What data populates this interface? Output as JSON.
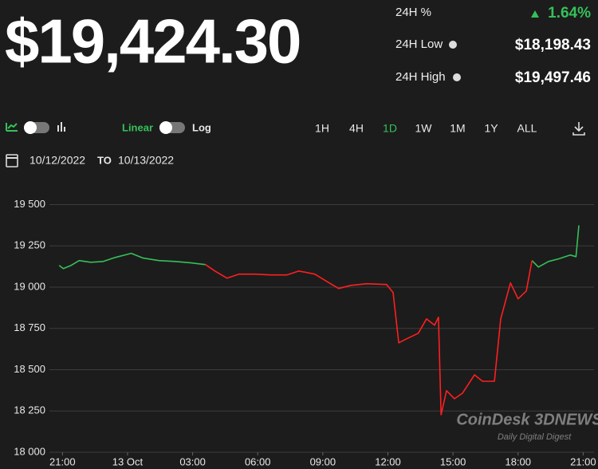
{
  "header": {
    "price": "$19,424.30",
    "stats": [
      {
        "label": "24H %",
        "value": "1.64%"
      },
      {
        "label": "24H Low",
        "value": "$18,198.43"
      },
      {
        "label": "24H High",
        "value": "$19,497.46"
      }
    ]
  },
  "controls": {
    "scale_linear": "Linear",
    "scale_log": "Log",
    "ranges": [
      "1H",
      "4H",
      "1D",
      "1W",
      "1M",
      "1Y",
      "ALL"
    ],
    "active_range": 2,
    "date_from": "10/12/2022",
    "date_to_label": "TO",
    "date_to": "10/13/2022"
  },
  "watermark": {
    "logo": "CoinDesk 3DNEWS",
    "tagline": "Daily Digital Digest"
  },
  "chart_data": {
    "type": "line",
    "x": [
      -0.15,
      0.04,
      0.4,
      0.77,
      1.3,
      1.88,
      2.43,
      3.17,
      3.72,
      4.45,
      5.19,
      5.93,
      6.59,
      7.03,
      7.58,
      8.13,
      8.87,
      9.6,
      10.34,
      10.9,
      11.63,
      12.18,
      12.73,
      13.29,
      14.02,
      14.94,
      15.24,
      15.5,
      15.86,
      16.4,
      16.78,
      17.15,
      17.33,
      17.45,
      17.7,
      18.07,
      18.44,
      18.99,
      19.36,
      19.91,
      20.2,
      20.65,
      21.0,
      21.38,
      21.64,
      21.94,
      22.4,
      22.86,
      23.4,
      23.67,
      23.8
    ],
    "series": [
      {
        "color": "#35c05a",
        "values": [
          19132,
          19113,
          19132,
          19161,
          19151,
          19156,
          19180,
          19205,
          19176,
          19161,
          19156,
          19147,
          19137,
          null,
          null,
          null,
          null,
          null,
          null,
          null,
          null,
          null,
          null,
          null,
          null,
          null,
          null,
          null,
          null,
          null,
          null,
          null,
          null,
          null,
          null,
          null,
          null,
          null,
          null,
          null,
          null,
          null,
          null,
          null,
          19161,
          19122,
          19156,
          19171,
          19195,
          19185,
          19374
        ]
      },
      {
        "color": "#ff1f1f",
        "values": [
          null,
          null,
          null,
          null,
          null,
          null,
          null,
          null,
          null,
          null,
          null,
          null,
          19137,
          19098,
          19055,
          19079,
          19079,
          19074,
          19074,
          19098,
          19079,
          19035,
          18992,
          19011,
          19021,
          19016,
          18968,
          18663,
          18687,
          18721,
          18808,
          18769,
          18818,
          18227,
          18373,
          18324,
          18358,
          18469,
          18430,
          18430,
          18808,
          19026,
          18929,
          18977,
          19161,
          null,
          null,
          null,
          null,
          null,
          null
        ]
      }
    ],
    "xlim": [
      -0.6,
      24.5
    ],
    "xticks": [
      {
        "value": 0,
        "label": "21:00"
      },
      {
        "value": 3,
        "label": "13 Oct"
      },
      {
        "value": 6,
        "label": "03:00"
      },
      {
        "value": 9,
        "label": "06:00"
      },
      {
        "value": 12,
        "label": "09:00"
      },
      {
        "value": 15,
        "label": "12:00"
      },
      {
        "value": 18,
        "label": "15:00"
      },
      {
        "value": 21,
        "label": "18:00"
      },
      {
        "value": 24,
        "label": "21:00"
      }
    ],
    "ylim": [
      18000,
      19580
    ],
    "yticks": [
      {
        "value": 18000,
        "label": "18 000"
      },
      {
        "value": 18250,
        "label": "18 250"
      },
      {
        "value": 18500,
        "label": "18 500"
      },
      {
        "value": 18750,
        "label": "18 750"
      },
      {
        "value": 19000,
        "label": "19 000"
      },
      {
        "value": 19250,
        "label": "19 250"
      },
      {
        "value": 19500,
        "label": "19 500"
      }
    ],
    "grid": true
  }
}
